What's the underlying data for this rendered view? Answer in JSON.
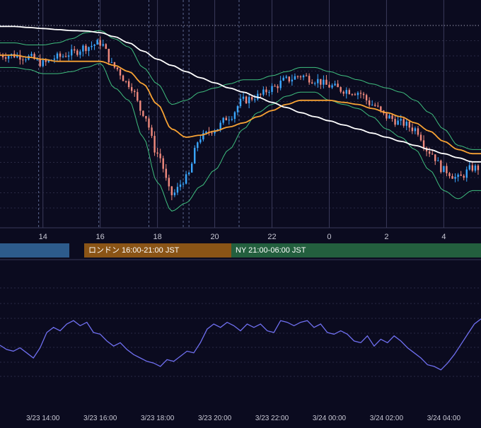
{
  "colors": {
    "background": "#0b0b1f",
    "grid": "#2a2a44",
    "bull_candle": "#3aa7ff",
    "bear_candle": "#f08a7e",
    "ma_slow": "#ffffff",
    "ma_mid": "#f7a234",
    "bollinger": "#3fbf7f",
    "oscillator": "#6f6ff0",
    "session_tokyo": "#2d5b8c",
    "session_london": "#8a5416",
    "session_ny": "#235f3e",
    "axis_text": "#c8c8d4"
  },
  "sessions": [
    {
      "name": "",
      "label": ""
    },
    {
      "name": "london",
      "label": "ロンドン 16:00-21:00 JST"
    },
    {
      "name": "ny",
      "label": "NY 21:00-06:00 JST"
    }
  ],
  "chart_data": [
    {
      "type": "candlestick",
      "title": "",
      "x_ticks": [
        "14",
        "16",
        "18",
        "20",
        "22",
        "0",
        "2",
        "4"
      ],
      "x_hours": [
        13.0,
        13.5,
        14.0,
        14.5,
        15.0,
        15.5,
        16.0,
        16.5,
        17.0,
        17.5,
        18.0,
        18.5,
        19.0,
        19.5,
        20.0,
        20.5,
        21.0,
        21.5,
        22.0,
        22.5,
        23.0,
        23.5,
        24.0,
        24.5,
        25.0,
        25.5,
        26.0,
        26.5,
        27.0,
        27.5,
        28.0,
        28.5,
        29.0
      ],
      "close": [
        80,
        79,
        76,
        79,
        81,
        84,
        86,
        74,
        66,
        52,
        32,
        12,
        20,
        40,
        44,
        50,
        58,
        60,
        64,
        68,
        70,
        68,
        65,
        63,
        62,
        56,
        50,
        47,
        44,
        33,
        24,
        20,
        25
      ],
      "ma_slow": [
        94,
        93.5,
        93,
        92.5,
        92,
        91.8,
        91,
        89,
        86,
        82,
        78,
        75,
        72,
        69,
        66.5,
        64,
        62,
        59.5,
        57,
        54.5,
        52,
        50,
        48,
        46,
        44,
        42,
        40,
        38,
        36,
        34,
        32,
        30,
        28
      ],
      "ma_mid": [
        80,
        79,
        78,
        77,
        77,
        77,
        77,
        75,
        72,
        66,
        56,
        44,
        40,
        41,
        43,
        45,
        47,
        50,
        53,
        56,
        58,
        58,
        58,
        57,
        56,
        54,
        52,
        50,
        47,
        43,
        38,
        34,
        32
      ],
      "bb_upper": [
        86,
        85,
        85,
        86,
        88,
        91,
        92,
        88,
        84,
        74,
        66,
        56,
        58,
        62,
        64,
        66,
        68,
        68,
        70,
        72,
        74,
        74,
        72,
        70,
        68,
        66,
        64,
        62,
        58,
        52,
        44,
        36,
        34
      ],
      "bb_lower": [
        74,
        73,
        71,
        71,
        72,
        74,
        76,
        64,
        58,
        40,
        18,
        4,
        8,
        16,
        24,
        34,
        44,
        52,
        56,
        60,
        62,
        62,
        58,
        56,
        54,
        50,
        44,
        40,
        34,
        24,
        14,
        10,
        14
      ],
      "y_range": [
        0,
        100
      ]
    },
    {
      "type": "line",
      "title": "",
      "x_ticks": [
        "3/23 14:00",
        "3/23 16:00",
        "3/23 18:00",
        "3/23 20:00",
        "3/23 22:00",
        "3/24 00:00",
        "3/24 02:00",
        "3/24 04:00"
      ],
      "series": [
        {
          "name": "",
          "values": [
            45,
            40,
            38,
            42,
            36,
            30,
            42,
            60,
            66,
            62,
            70,
            74,
            68,
            72,
            60,
            58,
            50,
            44,
            48,
            40,
            34,
            30,
            26,
            24,
            20,
            28,
            26,
            32,
            38,
            36,
            48,
            64,
            70,
            66,
            72,
            68,
            62,
            70,
            66,
            70,
            62,
            60,
            74,
            72,
            68,
            72,
            74,
            66,
            70,
            60,
            58,
            62,
            58,
            50,
            48,
            56,
            44,
            52,
            48,
            56,
            50,
            42,
            36,
            30,
            22,
            20,
            16,
            24,
            34,
            46,
            58,
            70,
            76
          ]
        }
      ],
      "y_range": [
        0,
        100
      ]
    }
  ]
}
